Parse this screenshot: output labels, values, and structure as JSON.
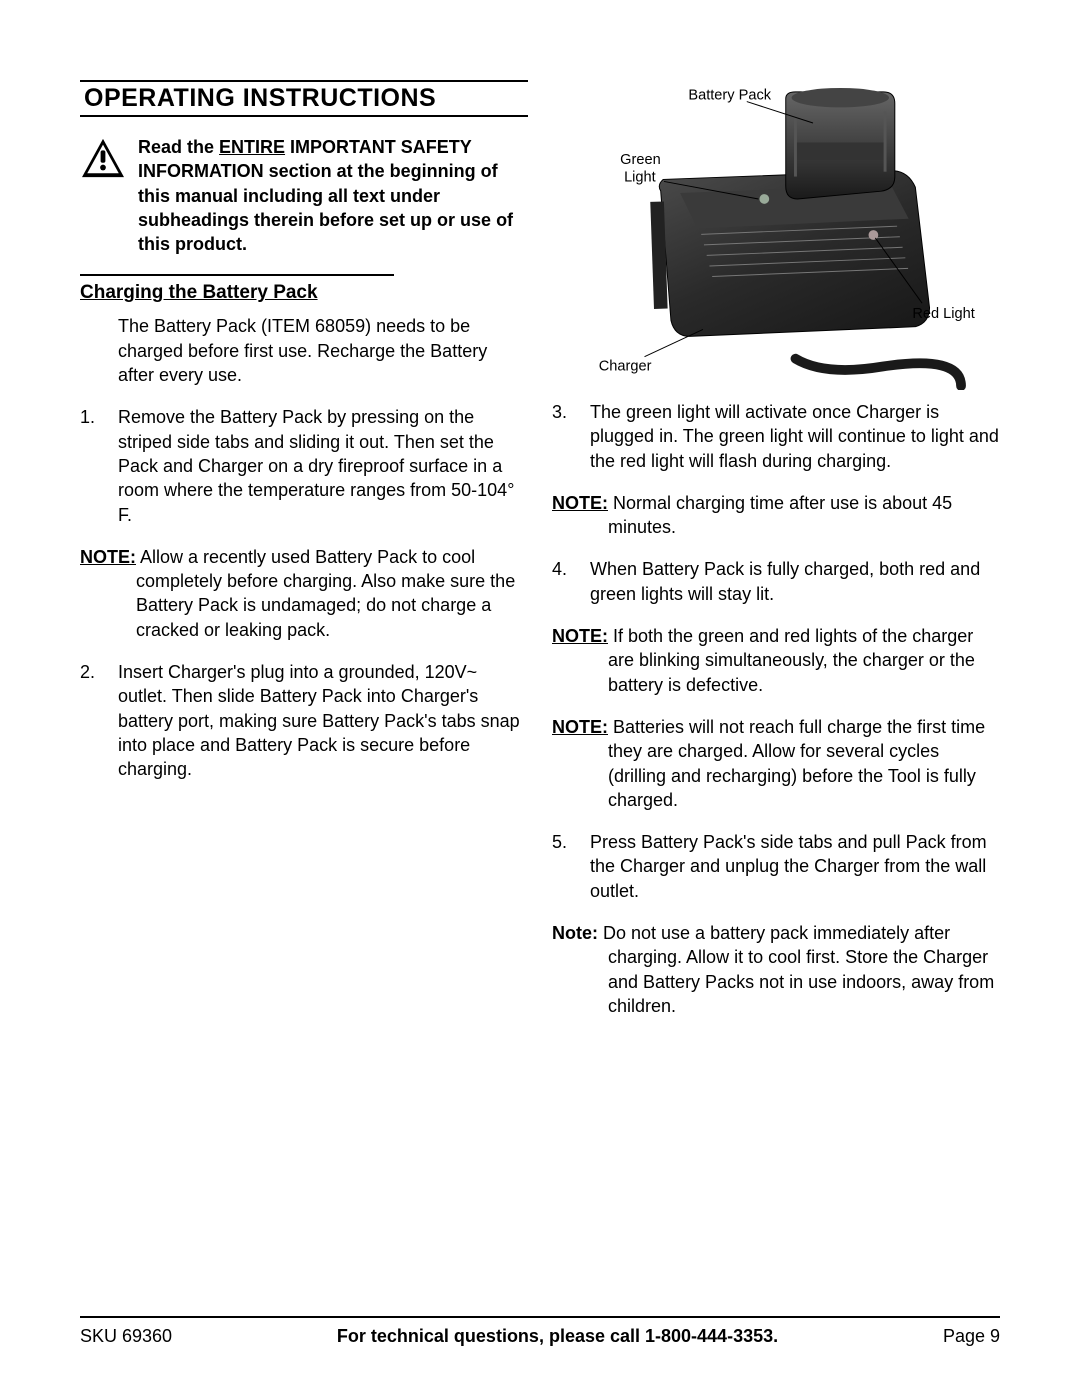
{
  "heading": "OPERATING INSTRUCTIONS",
  "safety": {
    "prefix": "Read the ",
    "entire": "ENTIRE",
    "rest": " IMPORTANT SAFETY INFORMATION section at the beginning of this manual including all text under subheadings therein before set up or use of this product."
  },
  "subheading": "Charging the Battery Pack",
  "intro": "The Battery Pack (ITEM 68059) needs to be charged before first use.  Recharge the Battery after every use.",
  "left_items": [
    {
      "num": "1.",
      "text": "Remove the Battery Pack by pressing on the striped side tabs and sliding it out.  Then set the Pack and Charger on a dry fireproof surface in a room where the temperature ranges from 50-104° F."
    },
    {
      "num": "NOTE:",
      "is_note": true,
      "text": " Allow a recently used Battery Pack to cool completely before charging.  Also make sure the Battery Pack is undamaged; do not charge a cracked or leaking pack."
    },
    {
      "num": "2.",
      "text": "Insert Charger's plug into a grounded, 120V~ outlet.  Then slide Battery Pack into Charger's battery port, making sure Battery Pack's tabs snap into place and Battery Pack is secure before charging."
    }
  ],
  "right_items": [
    {
      "num": "3.",
      "text": "The green light will activate once Charger is plugged in.  The green light will continue to light and the red light will flash during charging."
    },
    {
      "num": "NOTE:",
      "is_note": true,
      "text": " Normal charging time after use is about 45 minutes."
    },
    {
      "num": "4.",
      "text": "When Battery Pack is fully charged, both red and green lights will stay lit."
    },
    {
      "num": "NOTE:",
      "is_note": true,
      "text": "  If both the green and red lights of the charger are blinking simultaneously, the charger or the battery is defective."
    },
    {
      "num": "NOTE:",
      "is_note": true,
      "text": " Batteries will not reach full charge the first time they are charged.  Allow for several cycles (drilling and recharging) before the Tool is fully charged."
    },
    {
      "num": "5.",
      "text": "Press Battery Pack's side tabs and pull Pack from the Charger and unplug the Charger from the wall outlet."
    },
    {
      "num": "Note:",
      "is_note": true,
      "plain": true,
      "text": " Do not use a battery pack immediately after charging. Allow it to cool first. Store the Charger and Battery Packs not in use indoors, away from children."
    }
  ],
  "diagram": {
    "labels": {
      "battery_pack": "Battery Pack",
      "green_light": "Green Light",
      "red_light": "Red Light",
      "charger": "Charger"
    },
    "colors": {
      "body": "#2a2a2a",
      "body_dark": "#1a1a1a",
      "body_light": "#555555",
      "line": "#000000",
      "label_fontsize": 15
    }
  },
  "footer": {
    "sku": "SKU 69360",
    "mid": "For technical questions, please call 1-800-444-3353.",
    "page": "Page 9"
  }
}
